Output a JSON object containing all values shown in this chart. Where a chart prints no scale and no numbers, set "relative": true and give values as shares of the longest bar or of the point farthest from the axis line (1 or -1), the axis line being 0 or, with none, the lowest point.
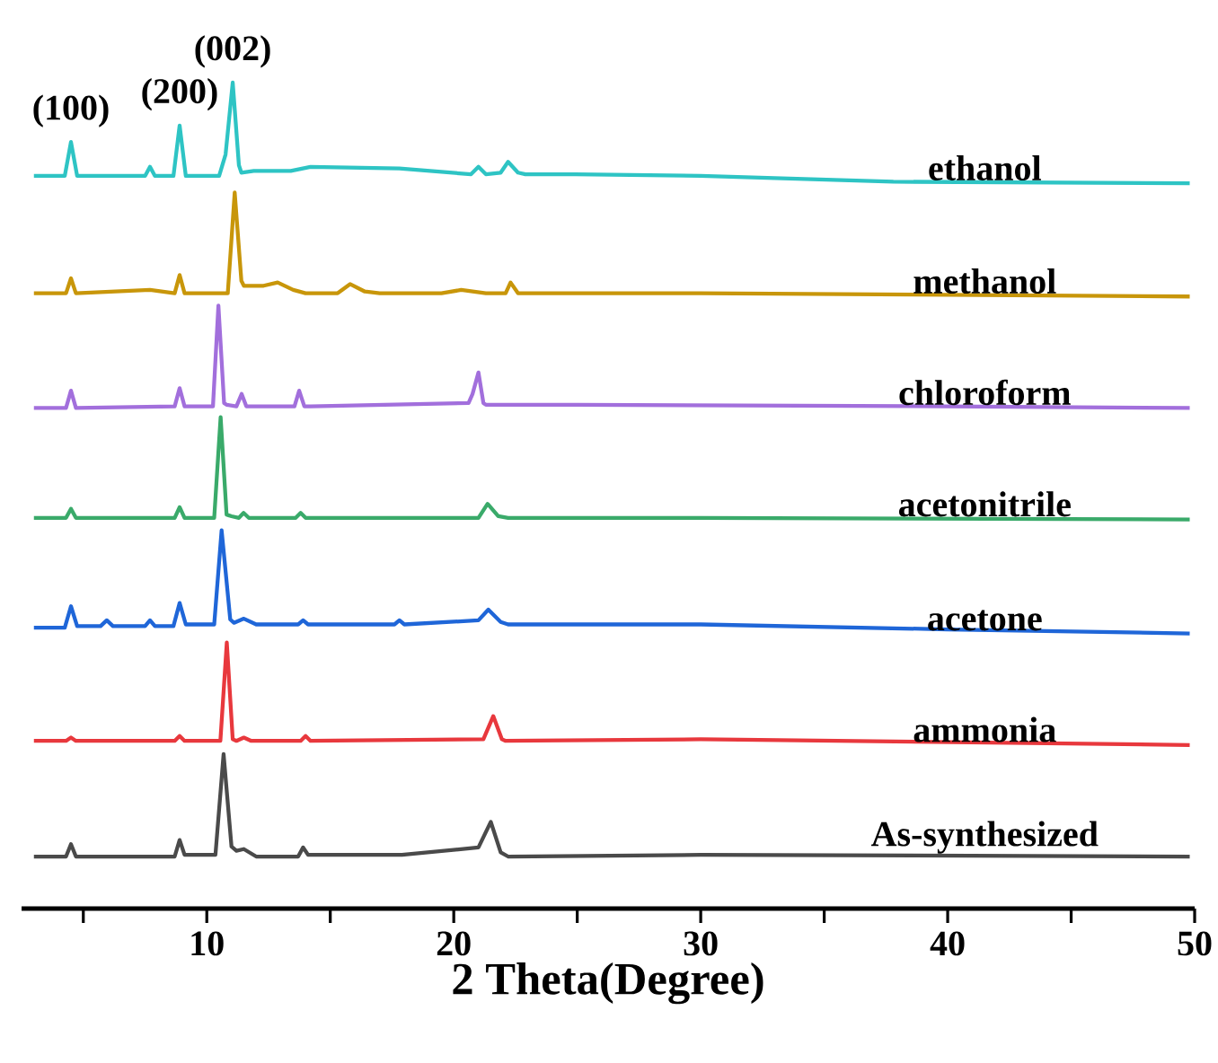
{
  "chart_data": {
    "type": "line",
    "xlabel": "2 Theta(Degree)",
    "relative": true,
    "xlim": [
      2.5,
      50
    ],
    "xticks": [
      {
        "value": 5,
        "label": null
      },
      10,
      {
        "value": 15,
        "label": null
      },
      20,
      {
        "value": 25,
        "label": null
      },
      30,
      {
        "value": 35,
        "label": null
      },
      40,
      {
        "value": 45,
        "label": null
      },
      50
    ],
    "line_style": "solid",
    "annotations": [
      {
        "text": "(100)",
        "x": 4.5,
        "y": 0.928
      },
      {
        "text": "(200)",
        "x": 8.9,
        "y": 0.948
      },
      {
        "text": "(002)",
        "x": 11.05,
        "y": 1.0
      }
    ],
    "series": [
      {
        "name": "ethanol",
        "color": "#2ec4c4",
        "x": [
          3.0,
          4.25,
          4.5,
          4.75,
          7.5,
          7.7,
          7.9,
          8.65,
          8.9,
          9.15,
          10.5,
          10.76,
          11.05,
          11.3,
          11.4,
          11.9,
          13.4,
          14.2,
          17.8,
          20.7,
          21.0,
          21.3,
          21.9,
          22.2,
          22.6,
          22.9,
          24.9,
          30,
          37.8,
          49.8
        ],
        "values": [
          0.887,
          0.887,
          0.928,
          0.887,
          0.887,
          0.898,
          0.887,
          0.887,
          0.948,
          0.887,
          0.887,
          0.913,
          1.0,
          0.9,
          0.891,
          0.893,
          0.893,
          0.898,
          0.896,
          0.889,
          0.898,
          0.889,
          0.891,
          0.904,
          0.891,
          0.889,
          0.889,
          0.887,
          0.88,
          0.878
        ]
      },
      {
        "name": "methanol",
        "color": "#c8960a",
        "x": [
          3.0,
          4.3,
          4.5,
          4.7,
          7.7,
          8.7,
          8.9,
          9.1,
          10.85,
          11.13,
          11.4,
          11.5,
          12.3,
          12.87,
          13.5,
          14.0,
          15.3,
          15.8,
          16.4,
          17.0,
          19.5,
          20.3,
          21.3,
          22.1,
          22.3,
          22.6,
          22.8,
          30,
          40,
          49.8
        ],
        "values": [
          0.745,
          0.745,
          0.763,
          0.745,
          0.749,
          0.745,
          0.767,
          0.745,
          0.745,
          0.867,
          0.76,
          0.754,
          0.754,
          0.758,
          0.749,
          0.745,
          0.745,
          0.756,
          0.747,
          0.745,
          0.745,
          0.749,
          0.745,
          0.745,
          0.758,
          0.745,
          0.745,
          0.745,
          0.743,
          0.741
        ]
      },
      {
        "name": "chloroform",
        "color": "#a26fdc",
        "x": [
          3.0,
          4.3,
          4.5,
          4.7,
          8.7,
          8.9,
          9.1,
          10.25,
          10.47,
          10.7,
          10.8,
          11.2,
          11.41,
          11.6,
          11.7,
          13.55,
          13.74,
          13.95,
          14.2,
          20.6,
          20.76,
          21.0,
          21.2,
          21.3,
          25,
          40,
          49.8
        ],
        "values": [
          0.606,
          0.606,
          0.627,
          0.606,
          0.608,
          0.63,
          0.608,
          0.608,
          0.73,
          0.612,
          0.61,
          0.608,
          0.623,
          0.608,
          0.608,
          0.608,
          0.627,
          0.608,
          0.608,
          0.612,
          0.623,
          0.649,
          0.612,
          0.61,
          0.61,
          0.608,
          0.606
        ]
      },
      {
        "name": "acetonitrile",
        "color": "#3aaa6a",
        "x": [
          3.0,
          4.3,
          4.5,
          4.7,
          8.7,
          8.9,
          9.1,
          10.3,
          10.56,
          10.8,
          11.0,
          11.3,
          11.49,
          11.7,
          11.8,
          13.6,
          13.8,
          14.0,
          14.3,
          21.0,
          21.37,
          21.8,
          22.2,
          30,
          49.8
        ],
        "values": [
          0.473,
          0.473,
          0.484,
          0.473,
          0.473,
          0.486,
          0.473,
          0.473,
          0.595,
          0.477,
          0.475,
          0.473,
          0.479,
          0.473,
          0.473,
          0.473,
          0.479,
          0.473,
          0.473,
          0.473,
          0.49,
          0.475,
          0.473,
          0.473,
          0.471
        ]
      },
      {
        "name": "acetone",
        "color": "#1f66d8",
        "x": [
          3.0,
          4.25,
          4.5,
          4.75,
          5.7,
          5.95,
          6.2,
          7.5,
          7.7,
          7.9,
          8.65,
          8.9,
          9.15,
          10.3,
          10.6,
          10.95,
          11.1,
          11.5,
          12.0,
          13.7,
          13.9,
          14.1,
          17.6,
          17.8,
          18.0,
          21.0,
          21.4,
          21.9,
          22.2,
          30,
          40,
          49.8
        ],
        "values": [
          0.34,
          0.34,
          0.366,
          0.342,
          0.342,
          0.349,
          0.342,
          0.342,
          0.349,
          0.342,
          0.342,
          0.37,
          0.344,
          0.344,
          0.458,
          0.35,
          0.346,
          0.351,
          0.344,
          0.344,
          0.349,
          0.344,
          0.344,
          0.349,
          0.344,
          0.349,
          0.362,
          0.347,
          0.344,
          0.344,
          0.338,
          0.333
        ]
      },
      {
        "name": "ammonia",
        "color": "#e8383d",
        "x": [
          3.0,
          4.3,
          4.5,
          4.7,
          8.7,
          8.9,
          9.1,
          10.55,
          10.81,
          11.05,
          11.2,
          11.5,
          11.8,
          13.8,
          14.0,
          14.2,
          21.2,
          21.6,
          21.95,
          22.1,
          30,
          49.8
        ],
        "values": [
          0.203,
          0.203,
          0.207,
          0.203,
          0.203,
          0.209,
          0.203,
          0.203,
          0.322,
          0.205,
          0.203,
          0.207,
          0.203,
          0.203,
          0.209,
          0.203,
          0.205,
          0.233,
          0.205,
          0.203,
          0.205,
          0.198
        ]
      },
      {
        "name": "As-synthesized",
        "color": "#4a4a4a",
        "x": [
          3.0,
          4.3,
          4.5,
          4.7,
          8.7,
          8.9,
          9.1,
          10.35,
          10.68,
          11.0,
          11.2,
          11.5,
          12.0,
          13.7,
          13.9,
          14.1,
          17.9,
          21.0,
          21.5,
          21.9,
          22.2,
          30,
          49.8
        ],
        "values": [
          0.063,
          0.063,
          0.078,
          0.063,
          0.063,
          0.083,
          0.065,
          0.065,
          0.187,
          0.075,
          0.07,
          0.072,
          0.063,
          0.063,
          0.074,
          0.065,
          0.065,
          0.074,
          0.105,
          0.068,
          0.063,
          0.065,
          0.063
        ]
      }
    ]
  }
}
